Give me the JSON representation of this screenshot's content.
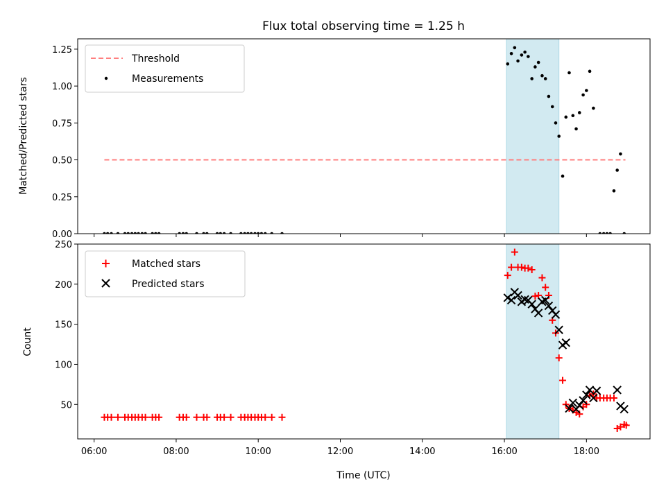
{
  "chart_data": [
    {
      "type": "scatter",
      "title": "Flux total observing time = 1.25 h",
      "xlabel": "",
      "ylabel": "Matched/Predicted stars",
      "ylim": [
        0,
        1.32
      ],
      "yticks": [
        "0.00",
        "0.25",
        "0.50",
        "0.75",
        "1.00",
        "1.25"
      ],
      "ytick_values": [
        0,
        0.25,
        0.5,
        0.75,
        1.0,
        1.25
      ],
      "highlight_span_hours": [
        16.05,
        17.33
      ],
      "highlight_color": "#add8e6",
      "legend_position": "upper-left",
      "threshold": {
        "name": "Threshold",
        "y": 0.5,
        "x_range_hours": [
          6.25,
          18.95
        ],
        "color": "#ff7f7f",
        "style": "dashed"
      },
      "series": [
        {
          "name": "Measurements",
          "color": "#000000",
          "marker": "dot",
          "points": [
            [
              6.25,
              0
            ],
            [
              6.33,
              0
            ],
            [
              6.42,
              0
            ],
            [
              6.58,
              0
            ],
            [
              6.75,
              0
            ],
            [
              6.83,
              0
            ],
            [
              6.92,
              0
            ],
            [
              7.0,
              0
            ],
            [
              7.08,
              0
            ],
            [
              7.17,
              0
            ],
            [
              7.25,
              0
            ],
            [
              7.42,
              0
            ],
            [
              7.5,
              0
            ],
            [
              7.58,
              0
            ],
            [
              8.08,
              0
            ],
            [
              8.17,
              0
            ],
            [
              8.25,
              0
            ],
            [
              8.5,
              0
            ],
            [
              8.67,
              0
            ],
            [
              8.75,
              0
            ],
            [
              9.0,
              0
            ],
            [
              9.08,
              0
            ],
            [
              9.17,
              0
            ],
            [
              9.33,
              0
            ],
            [
              9.58,
              0
            ],
            [
              9.67,
              0
            ],
            [
              9.75,
              0
            ],
            [
              9.83,
              0
            ],
            [
              9.92,
              0
            ],
            [
              10.0,
              0
            ],
            [
              10.08,
              0
            ],
            [
              10.17,
              0
            ],
            [
              10.33,
              0
            ],
            [
              10.58,
              0
            ],
            [
              16.08,
              1.15
            ],
            [
              16.17,
              1.22
            ],
            [
              16.25,
              1.26
            ],
            [
              16.33,
              1.17
            ],
            [
              16.42,
              1.21
            ],
            [
              16.5,
              1.23
            ],
            [
              16.58,
              1.2
            ],
            [
              16.67,
              1.05
            ],
            [
              16.75,
              1.13
            ],
            [
              16.83,
              1.16
            ],
            [
              16.92,
              1.07
            ],
            [
              17.0,
              1.05
            ],
            [
              17.08,
              0.93
            ],
            [
              17.17,
              0.86
            ],
            [
              17.25,
              0.75
            ],
            [
              17.33,
              0.66
            ],
            [
              17.42,
              0.39
            ],
            [
              17.5,
              0.79
            ],
            [
              17.58,
              1.09
            ],
            [
              17.67,
              0.8
            ],
            [
              17.75,
              0.71
            ],
            [
              17.83,
              0.82
            ],
            [
              17.92,
              0.94
            ],
            [
              18.0,
              0.97
            ],
            [
              18.08,
              1.1
            ],
            [
              18.17,
              0.85
            ],
            [
              18.33,
              0
            ],
            [
              18.42,
              0
            ],
            [
              18.5,
              0
            ],
            [
              18.58,
              0
            ],
            [
              18.67,
              0.29
            ],
            [
              18.75,
              0.43
            ],
            [
              18.83,
              0.54
            ],
            [
              18.92,
              0
            ]
          ]
        }
      ]
    },
    {
      "type": "scatter",
      "xlabel": "Time (UTC)",
      "ylabel": "Count",
      "ylim": [
        7,
        250
      ],
      "yticks": [
        "50",
        "100",
        "150",
        "200",
        "250"
      ],
      "ytick_values": [
        50,
        100,
        150,
        200,
        250
      ],
      "xlim_hours": [
        5.6,
        19.55
      ],
      "xticks": [
        "06:00",
        "08:00",
        "10:00",
        "12:00",
        "14:00",
        "16:00",
        "18:00"
      ],
      "xtick_values_hours": [
        6,
        8,
        10,
        12,
        14,
        16,
        18
      ],
      "highlight_span_hours": [
        16.05,
        17.33
      ],
      "highlight_color": "#add8e6",
      "legend_position": "upper-left",
      "series": [
        {
          "name": "Matched stars",
          "color": "#ff0000",
          "marker": "plus",
          "points": [
            [
              6.25,
              34
            ],
            [
              6.33,
              34
            ],
            [
              6.42,
              34
            ],
            [
              6.58,
              34
            ],
            [
              6.75,
              34
            ],
            [
              6.83,
              34
            ],
            [
              6.92,
              34
            ],
            [
              7.0,
              34
            ],
            [
              7.08,
              34
            ],
            [
              7.17,
              34
            ],
            [
              7.25,
              34
            ],
            [
              7.42,
              34
            ],
            [
              7.5,
              34
            ],
            [
              7.58,
              34
            ],
            [
              8.08,
              34
            ],
            [
              8.17,
              34
            ],
            [
              8.25,
              34
            ],
            [
              8.5,
              34
            ],
            [
              8.67,
              34
            ],
            [
              8.75,
              34
            ],
            [
              9.0,
              34
            ],
            [
              9.08,
              34
            ],
            [
              9.17,
              34
            ],
            [
              9.33,
              34
            ],
            [
              9.58,
              34
            ],
            [
              9.67,
              34
            ],
            [
              9.75,
              34
            ],
            [
              9.83,
              34
            ],
            [
              9.92,
              34
            ],
            [
              10.0,
              34
            ],
            [
              10.08,
              34
            ],
            [
              10.17,
              34
            ],
            [
              10.33,
              34
            ],
            [
              10.58,
              34
            ],
            [
              16.08,
              211
            ],
            [
              16.17,
              221
            ],
            [
              16.25,
              240
            ],
            [
              16.33,
              221
            ],
            [
              16.42,
              221
            ],
            [
              16.5,
              220
            ],
            [
              16.58,
              220
            ],
            [
              16.67,
              218
            ],
            [
              16.75,
              185
            ],
            [
              16.83,
              186
            ],
            [
              16.92,
              208
            ],
            [
              17.0,
              196
            ],
            [
              17.08,
              186
            ],
            [
              17.17,
              155
            ],
            [
              17.25,
              139
            ],
            [
              17.33,
              108
            ],
            [
              17.42,
              80
            ],
            [
              17.5,
              50
            ],
            [
              17.58,
              45
            ],
            [
              17.67,
              43
            ],
            [
              17.75,
              40
            ],
            [
              17.83,
              38
            ],
            [
              17.92,
              47
            ],
            [
              18.0,
              50
            ],
            [
              18.08,
              61
            ],
            [
              18.17,
              63
            ],
            [
              18.25,
              58
            ],
            [
              18.33,
              58
            ],
            [
              18.42,
              58
            ],
            [
              18.5,
              58
            ],
            [
              18.58,
              58
            ],
            [
              18.67,
              58
            ],
            [
              18.75,
              20
            ],
            [
              18.83,
              22
            ],
            [
              18.92,
              25
            ],
            [
              18.97,
              24
            ]
          ]
        },
        {
          "name": "Predicted stars",
          "color": "#000000",
          "marker": "x",
          "points": [
            [
              16.08,
              183
            ],
            [
              16.17,
              180
            ],
            [
              16.25,
              190
            ],
            [
              16.33,
              186
            ],
            [
              16.42,
              178
            ],
            [
              16.5,
              181
            ],
            [
              16.58,
              180
            ],
            [
              16.67,
              175
            ],
            [
              16.75,
              169
            ],
            [
              16.83,
              164
            ],
            [
              16.92,
              178
            ],
            [
              17.0,
              180
            ],
            [
              17.08,
              173
            ],
            [
              17.17,
              167
            ],
            [
              17.25,
              162
            ],
            [
              17.33,
              143
            ],
            [
              17.42,
              124
            ],
            [
              17.5,
              127
            ],
            [
              17.58,
              45
            ],
            [
              17.67,
              52
            ],
            [
              17.75,
              44
            ],
            [
              17.83,
              49
            ],
            [
              17.92,
              55
            ],
            [
              18.0,
              62
            ],
            [
              18.08,
              68
            ],
            [
              18.17,
              58
            ],
            [
              18.25,
              67
            ],
            [
              18.75,
              68
            ],
            [
              18.83,
              48
            ],
            [
              18.92,
              44
            ]
          ]
        }
      ]
    }
  ]
}
